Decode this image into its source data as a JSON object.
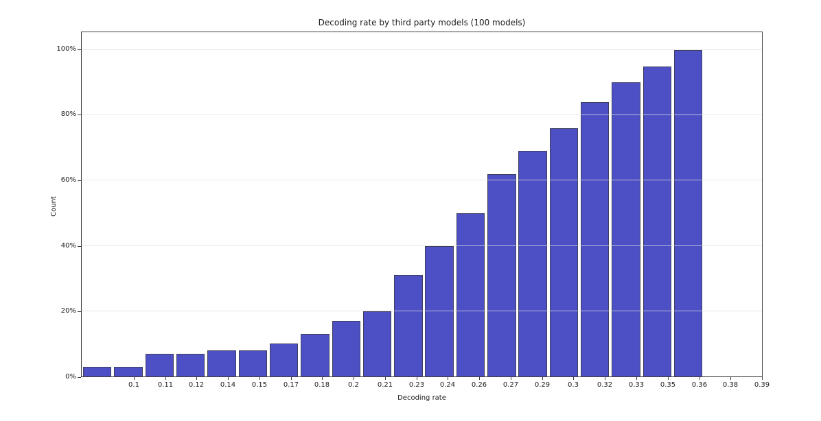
{
  "chart_data": {
    "type": "bar",
    "subtype": "cumulative-histogram",
    "title": "Decoding rate by third party models (100 models)",
    "xlabel": "Decoding rate",
    "ylabel": "Count",
    "x_tick_labels": [
      "0.1",
      "0.11",
      "0.12",
      "0.14",
      "0.15",
      "0.17",
      "0.18",
      "0.2",
      "0.21",
      "0.23",
      "0.24",
      "0.26",
      "0.27",
      "0.29",
      "0.3",
      "0.32",
      "0.33",
      "0.35",
      "0.36",
      "0.38",
      "0.39"
    ],
    "y_tick_labels": [
      "0%",
      "20%",
      "40%",
      "60%",
      "80%",
      "100%"
    ],
    "y_tick_values": [
      0,
      20,
      40,
      60,
      80,
      100
    ],
    "values": [
      3,
      3,
      7,
      7,
      8,
      8,
      10,
      13,
      17,
      20,
      31,
      40,
      50,
      62,
      69,
      76,
      84,
      90,
      95,
      100
    ],
    "ylim": [
      0,
      105.4
    ],
    "xlim_note": "20 bars starting at left spine; last bar ends near tick 0.36; region beyond 0.36 is empty",
    "grid": "horizontal-y",
    "legend": "none",
    "colors": {
      "bar_fill": "#4d50c4",
      "bar_edge": "#3e3e5e",
      "gridline": "#e0e0e0",
      "spine": "#3c3c3c",
      "text": "#1a1a1a",
      "background": "#ffffff"
    }
  }
}
